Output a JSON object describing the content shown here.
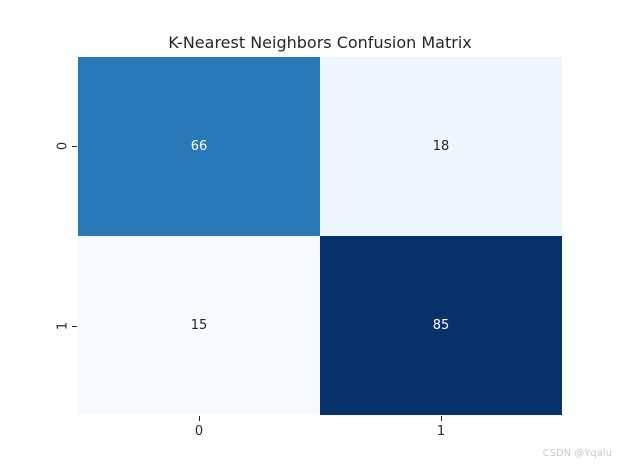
{
  "chart_data": {
    "type": "heatmap",
    "title": "K-Nearest Neighbors Confusion Matrix",
    "xlabel": "",
    "ylabel": "",
    "x_tick_labels": [
      "0",
      "1"
    ],
    "y_tick_labels": [
      "0",
      "1"
    ],
    "matrix": [
      [
        66,
        18
      ],
      [
        15,
        85
      ]
    ],
    "colormap": "Blues",
    "legend": "none",
    "grid": false,
    "cells": [
      {
        "row": "0",
        "col": "0",
        "value": "66",
        "bg": "#2878b8",
        "fg": "#ffffff"
      },
      {
        "row": "0",
        "col": "1",
        "value": "18",
        "bg": "#eef5fc",
        "fg": "#262626"
      },
      {
        "row": "1",
        "col": "0",
        "value": "15",
        "bg": "#f7fbff",
        "fg": "#262626"
      },
      {
        "row": "1",
        "col": "1",
        "value": "85",
        "bg": "#08306b",
        "fg": "#ffffff"
      }
    ],
    "tick_color": "#262626",
    "title_color": "#262626"
  },
  "ticks": {
    "x0": "0",
    "x1": "1",
    "y0": "0",
    "y1": "1"
  },
  "watermark": {
    "text": "CSDN @Yqalu",
    "color": "#c9c9c9"
  }
}
